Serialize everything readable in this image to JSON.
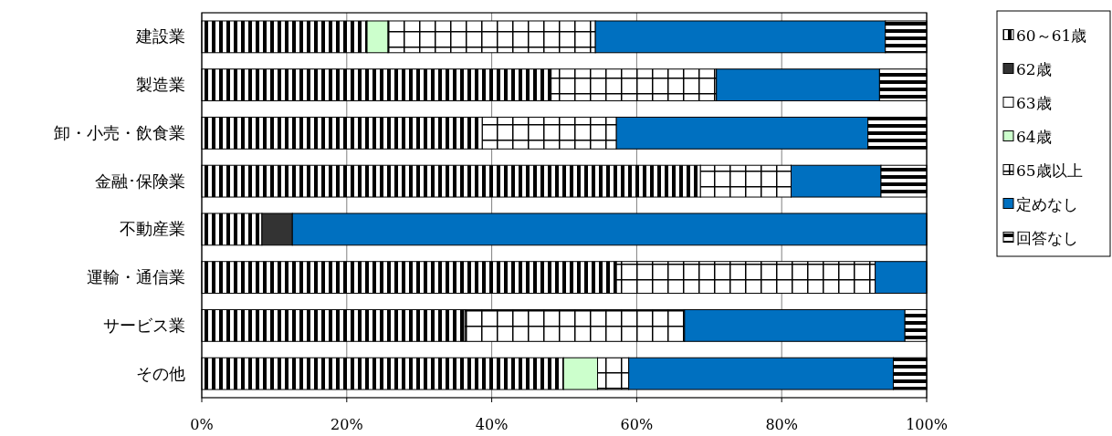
{
  "chart_data": {
    "type": "bar",
    "orientation": "horizontal",
    "stacked": true,
    "categories": [
      "建設業",
      "製造業",
      "卸・小売・飲食業",
      "金融･保険業",
      "不動産業",
      "運輸・通信業",
      "サービス業",
      "その他"
    ],
    "series": [
      {
        "name": "60～61歳",
        "color": "#000000",
        "values": [
          22.8,
          48.2,
          38.7,
          68.8,
          8.3,
          57.2,
          36.3,
          49.9
        ]
      },
      {
        "name": "62歳",
        "color": "#333333",
        "values": [
          0,
          0,
          0,
          0,
          4.2,
          0,
          0,
          0
        ]
      },
      {
        "name": "63歳",
        "color": "#ffffff",
        "values": [
          0,
          0,
          0,
          0,
          0,
          0,
          0,
          0
        ]
      },
      {
        "name": "64歳",
        "color": "#ccffcc",
        "values": [
          2.9,
          0,
          0,
          0,
          0,
          0,
          0,
          4.7
        ]
      },
      {
        "name": "65歳以上",
        "color": "#000000",
        "values": [
          28.6,
          22.8,
          18.5,
          12.5,
          0,
          35.7,
          30.3,
          4.3
        ]
      },
      {
        "name": "定めなし",
        "color": "#0070c0",
        "values": [
          40.0,
          22.5,
          34.7,
          12.4,
          87.5,
          7.1,
          30.4,
          36.5
        ]
      },
      {
        "name": "回答なし",
        "color": "#000000",
        "values": [
          5.7,
          6.5,
          8.1,
          6.3,
          0,
          0,
          3.0,
          4.6
        ]
      }
    ],
    "xlim": [
      0,
      100
    ],
    "xticks": [
      {
        "value": 0,
        "label": "0%"
      },
      {
        "value": 20,
        "label": "20%"
      },
      {
        "value": 40,
        "label": "40%"
      },
      {
        "value": 60,
        "label": "60%"
      },
      {
        "value": 80,
        "label": "80%"
      },
      {
        "value": 100,
        "label": "100%"
      }
    ],
    "grid": "x",
    "legend": "top right"
  }
}
